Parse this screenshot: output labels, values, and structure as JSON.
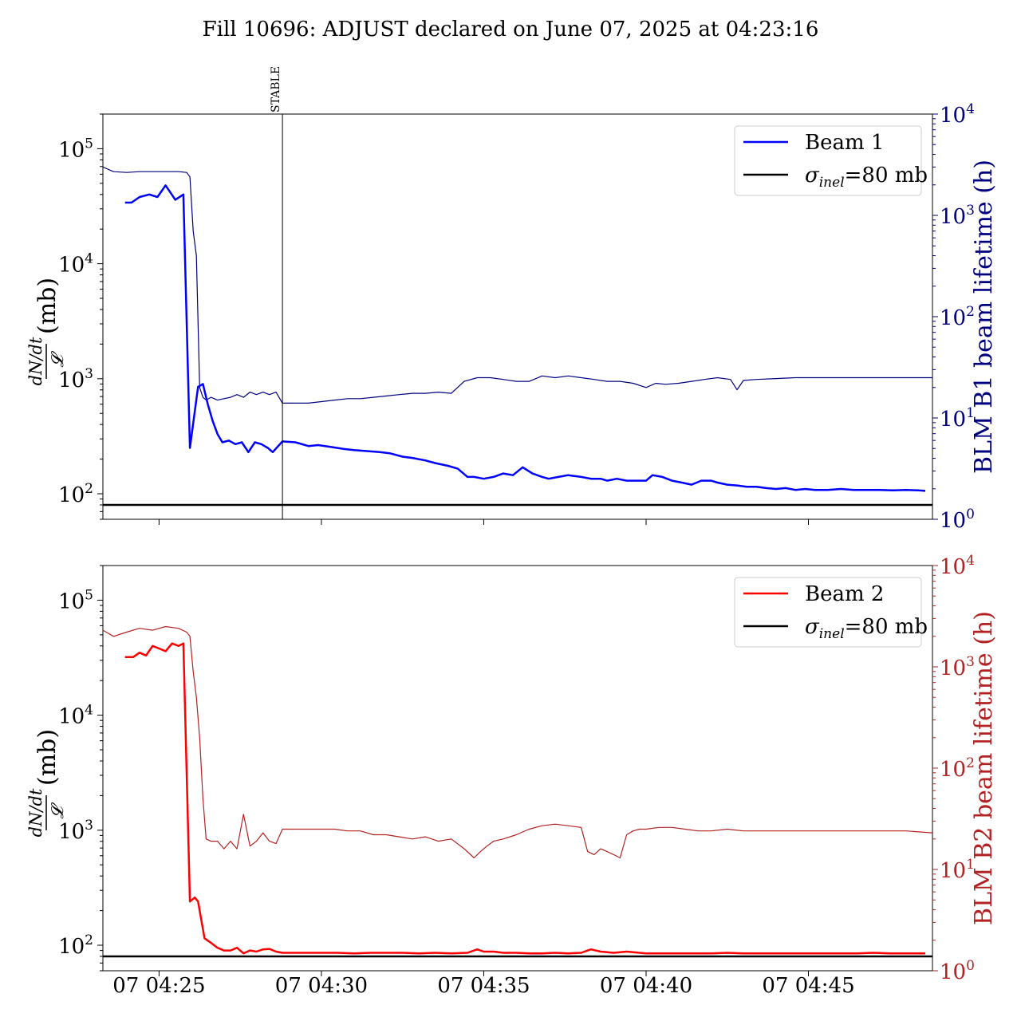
{
  "title": "Fill 10696: ADJUST declared on June 07, 2025 at 04:23:16",
  "colors": {
    "beam1": "#0000ff",
    "beam1_lifetime": "#00007f",
    "beam2": "#ff0000",
    "beam2_lifetime": "#b22222",
    "inel": "#000000"
  },
  "x_axis": {
    "ticks": [
      {
        "label": "07 04:25",
        "t": 25
      },
      {
        "label": "07 04:30",
        "t": 30
      },
      {
        "label": "07 04:35",
        "t": 35
      },
      {
        "label": "07 04:40",
        "t": 40
      },
      {
        "label": "07 04:45",
        "t": 45
      }
    ]
  },
  "annotation": {
    "label": "STABLE",
    "t": 28.8
  },
  "chart_data": [
    {
      "type": "line",
      "panel": "top",
      "ylabel_left": "dN/dt / 𝓛 (mb)",
      "ylabel_left_numerator": "dN/dt",
      "ylabel_left_denominator": "𝓛",
      "ylabel_left_unit": "(mb)",
      "ylabel_right": "BLM B1 beam lifetime (h)",
      "yscale": "log",
      "ylim_left": [
        60,
        200000
      ],
      "ylim_right": [
        1,
        10000
      ],
      "xlim": [
        23.27,
        48.82
      ],
      "left_ticks": [
        {
          "base": "10",
          "exp": "2",
          "v": 100
        },
        {
          "base": "10",
          "exp": "3",
          "v": 1000
        },
        {
          "base": "10",
          "exp": "4",
          "v": 10000
        },
        {
          "base": "10",
          "exp": "5",
          "v": 100000
        }
      ],
      "right_ticks": [
        {
          "base": "10",
          "exp": "0",
          "v": 1
        },
        {
          "base": "10",
          "exp": "1",
          "v": 10
        },
        {
          "base": "10",
          "exp": "2",
          "v": 100
        },
        {
          "base": "10",
          "exp": "3",
          "v": 1000
        },
        {
          "base": "10",
          "exp": "4",
          "v": 10000
        }
      ],
      "legend": {
        "placement": "top-right",
        "entries": [
          {
            "label": "Beam 1",
            "key": "beam1"
          },
          {
            "label": "σinel=80 mb",
            "main": "σ",
            "sub": "inel",
            "rest": "=80 mb",
            "key": "inel"
          }
        ]
      },
      "inel_mb": 80,
      "series": [
        {
          "name": "Beam 1",
          "axis": "left",
          "color_key": "beam1",
          "width": 2.5,
          "t": [
            23.95,
            24.15,
            24.4,
            24.7,
            24.95,
            25.2,
            25.5,
            25.75,
            25.95,
            26.2,
            26.35,
            26.5,
            26.65,
            26.8,
            26.95,
            27.15,
            27.35,
            27.55,
            27.75,
            27.95,
            28.15,
            28.35,
            28.5,
            28.8,
            29.2,
            29.6,
            29.9,
            30.3,
            30.7,
            31.0,
            31.4,
            31.8,
            32.1,
            32.5,
            32.8,
            33.2,
            33.5,
            33.9,
            34.2,
            34.5,
            34.7,
            35.0,
            35.3,
            35.6,
            35.9,
            36.2,
            36.5,
            36.8,
            37.0,
            37.3,
            37.6,
            38.0,
            38.3,
            38.6,
            38.8,
            39.1,
            39.4,
            39.7,
            40.0,
            40.2,
            40.5,
            40.8,
            41.1,
            41.4,
            41.7,
            42.0,
            42.2,
            42.5,
            42.8,
            43.1,
            43.4,
            43.7,
            44.0,
            44.3,
            44.6,
            44.9,
            45.2,
            45.6,
            46.0,
            46.4,
            46.8,
            47.2,
            47.6,
            48.0,
            48.4,
            48.6
          ],
          "v": [
            34000,
            34000,
            38000,
            40000,
            38000,
            48000,
            36000,
            40000,
            250,
            850,
            900,
            600,
            430,
            330,
            280,
            290,
            270,
            280,
            230,
            280,
            270,
            250,
            230,
            285,
            280,
            260,
            265,
            255,
            245,
            240,
            235,
            230,
            225,
            210,
            205,
            195,
            185,
            175,
            165,
            140,
            140,
            135,
            140,
            150,
            145,
            170,
            150,
            140,
            135,
            140,
            145,
            140,
            135,
            135,
            130,
            135,
            130,
            130,
            130,
            145,
            140,
            130,
            125,
            120,
            130,
            130,
            125,
            120,
            118,
            115,
            115,
            112,
            110,
            112,
            108,
            110,
            108,
            108,
            110,
            108,
            108,
            108,
            107,
            108,
            107,
            106
          ]
        },
        {
          "name": "BLM B1 beam lifetime",
          "axis": "right",
          "color_key": "beam1_lifetime",
          "width": 1.2,
          "t": [
            23.27,
            23.6,
            24.0,
            24.4,
            24.8,
            25.2,
            25.6,
            25.85,
            25.95,
            26.05,
            26.15,
            26.25,
            26.35,
            26.45,
            26.6,
            26.8,
            27.0,
            27.2,
            27.4,
            27.6,
            27.8,
            28.0,
            28.2,
            28.4,
            28.6,
            28.8,
            29.2,
            29.6,
            30.0,
            30.4,
            30.8,
            31.2,
            31.6,
            32.0,
            32.4,
            32.8,
            33.2,
            33.6,
            34.0,
            34.4,
            34.8,
            35.2,
            35.6,
            36.0,
            36.4,
            36.8,
            37.2,
            37.6,
            38.0,
            38.4,
            38.8,
            39.2,
            39.6,
            40.0,
            40.3,
            40.6,
            41.0,
            41.4,
            41.8,
            42.2,
            42.6,
            42.8,
            43.0,
            43.4,
            44.0,
            44.6,
            45.2,
            45.8,
            46.4,
            47.0,
            47.6,
            48.2,
            48.82
          ],
          "v": [
            3000,
            2700,
            2650,
            2700,
            2700,
            2700,
            2700,
            2650,
            2400,
            700,
            400,
            20,
            16,
            15,
            16,
            15,
            15.5,
            16,
            17,
            16,
            18,
            17,
            18,
            17,
            18,
            14,
            14,
            14,
            14.5,
            15,
            15.5,
            15.5,
            16,
            16.5,
            17,
            17.5,
            17.5,
            18,
            17.5,
            23,
            25,
            25,
            24,
            23,
            23,
            26,
            25,
            26,
            25,
            24,
            23,
            23,
            22,
            20,
            22,
            21.5,
            22,
            23,
            24,
            25,
            24,
            19,
            23.5,
            24,
            24.5,
            25,
            25,
            25,
            25,
            25,
            25,
            25,
            25
          ]
        }
      ]
    },
    {
      "type": "line",
      "panel": "bottom",
      "ylabel_left": "dN/dt / 𝓛 (mb)",
      "ylabel_left_numerator": "dN/dt",
      "ylabel_left_denominator": "𝓛",
      "ylabel_left_unit": "(mb)",
      "ylabel_right": "BLM B2 beam lifetime (h)",
      "yscale": "log",
      "ylim_left": [
        60,
        200000
      ],
      "ylim_right": [
        1,
        10000
      ],
      "xlim": [
        23.27,
        48.82
      ],
      "xticks": [
        "07 04:25",
        "07 04:30",
        "07 04:35",
        "07 04:40",
        "07 04:45"
      ],
      "left_ticks": [
        {
          "base": "10",
          "exp": "2",
          "v": 100
        },
        {
          "base": "10",
          "exp": "3",
          "v": 1000
        },
        {
          "base": "10",
          "exp": "4",
          "v": 10000
        },
        {
          "base": "10",
          "exp": "5",
          "v": 100000
        }
      ],
      "right_ticks": [
        {
          "base": "10",
          "exp": "0",
          "v": 1
        },
        {
          "base": "10",
          "exp": "1",
          "v": 10
        },
        {
          "base": "10",
          "exp": "2",
          "v": 100
        },
        {
          "base": "10",
          "exp": "3",
          "v": 1000
        },
        {
          "base": "10",
          "exp": "4",
          "v": 10000
        }
      ],
      "legend": {
        "placement": "top-right",
        "entries": [
          {
            "label": "Beam 2",
            "key": "beam2"
          },
          {
            "label": "σinel=80 mb",
            "main": "σ",
            "sub": "inel",
            "rest": "=80 mb",
            "key": "inel"
          }
        ]
      },
      "inel_mb": 80,
      "series": [
        {
          "name": "Beam 2",
          "axis": "left",
          "color_key": "beam2",
          "width": 2.5,
          "t": [
            23.95,
            24.2,
            24.4,
            24.6,
            24.8,
            25.0,
            25.2,
            25.4,
            25.6,
            25.75,
            25.95,
            26.1,
            26.2,
            26.4,
            26.6,
            26.8,
            27.0,
            27.2,
            27.4,
            27.6,
            27.8,
            28.0,
            28.2,
            28.4,
            28.6,
            28.8,
            29.2,
            29.6,
            30.0,
            30.5,
            31.0,
            31.5,
            32.0,
            32.5,
            33.0,
            33.5,
            34.0,
            34.5,
            34.8,
            35.0,
            35.3,
            35.6,
            36.0,
            36.4,
            36.8,
            37.2,
            37.6,
            38.0,
            38.3,
            38.6,
            39.0,
            39.4,
            39.8,
            40.0,
            40.5,
            41.0,
            41.5,
            42.0,
            42.5,
            43.0,
            43.5,
            44.0,
            44.5,
            45.0,
            45.5,
            46.0,
            46.5,
            47.0,
            47.5,
            48.0,
            48.5,
            48.6
          ],
          "v": [
            32000,
            32000,
            35000,
            33000,
            40000,
            38000,
            36000,
            42000,
            40000,
            42000,
            240,
            260,
            240,
            115,
            105,
            95,
            90,
            90,
            95,
            85,
            90,
            88,
            92,
            93,
            88,
            86,
            86,
            86,
            86,
            86,
            85,
            86,
            86,
            86,
            85,
            86,
            85,
            86,
            92,
            88,
            88,
            86,
            86,
            85,
            85,
            86,
            85,
            86,
            92,
            88,
            86,
            88,
            86,
            85,
            85,
            85,
            85,
            85,
            86,
            85,
            85,
            85,
            85,
            85,
            85,
            85,
            85,
            86,
            85,
            85,
            85,
            85
          ]
        },
        {
          "name": "BLM B2 beam lifetime",
          "axis": "right",
          "color_key": "beam2_lifetime",
          "width": 1.2,
          "t": [
            23.27,
            23.6,
            24.0,
            24.4,
            24.8,
            25.2,
            25.6,
            25.85,
            25.95,
            26.05,
            26.15,
            26.25,
            26.35,
            26.45,
            26.6,
            26.8,
            27.0,
            27.2,
            27.4,
            27.6,
            27.8,
            28.0,
            28.2,
            28.4,
            28.6,
            28.8,
            29.2,
            29.6,
            30.0,
            30.4,
            30.8,
            31.2,
            31.6,
            32.0,
            32.4,
            32.8,
            33.2,
            33.6,
            34.0,
            34.4,
            34.7,
            34.9,
            35.1,
            35.3,
            35.6,
            36.0,
            36.4,
            36.8,
            37.2,
            37.6,
            38.0,
            38.2,
            38.4,
            38.6,
            38.8,
            39.0,
            39.2,
            39.4,
            39.6,
            39.8,
            40.0,
            40.4,
            40.8,
            41.2,
            41.6,
            42.0,
            42.5,
            43.0,
            44.0,
            45.0,
            46.0,
            47.0,
            48.0,
            48.82
          ],
          "v": [
            2300,
            2000,
            2200,
            2400,
            2300,
            2500,
            2400,
            2200,
            2000,
            900,
            500,
            200,
            50,
            20,
            19,
            19,
            16,
            19,
            16,
            35,
            17,
            19,
            23,
            19,
            18,
            25,
            25,
            25,
            25,
            25,
            24,
            24,
            22,
            22,
            21,
            20,
            21,
            19,
            20,
            16,
            13,
            15,
            17,
            19,
            20,
            22,
            25,
            27,
            28,
            27,
            26,
            15,
            14,
            16,
            15,
            14,
            13,
            22,
            24,
            25,
            25,
            26,
            26,
            25,
            24,
            24,
            25,
            24,
            24,
            24,
            24,
            24,
            24,
            23
          ]
        }
      ]
    }
  ]
}
